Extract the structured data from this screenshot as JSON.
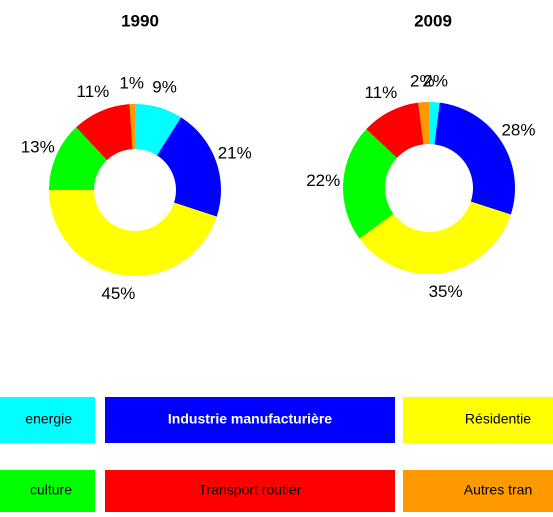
{
  "chart_data": [
    {
      "type": "pie",
      "title": "1990",
      "values": [
        9,
        21,
        45,
        13,
        11,
        1
      ],
      "value_labels": [
        "9%",
        "21%",
        "45%",
        "13%",
        "11%",
        "1%"
      ],
      "colors": [
        "#00ffff",
        "#0000ff",
        "#ffff00",
        "#00ff00",
        "#ff0000",
        "#ff9900"
      ]
    },
    {
      "type": "pie",
      "title": "2009",
      "values": [
        2,
        28,
        35,
        22,
        11,
        2
      ],
      "value_labels": [
        "2%",
        "28%",
        "35%",
        "22%",
        "11%",
        "2%"
      ],
      "colors": [
        "#00ffff",
        "#0000ff",
        "#ffff00",
        "#00ff00",
        "#ff0000",
        "#ff9900"
      ]
    }
  ],
  "legend": [
    {
      "label": "energie",
      "color": "#00ffff",
      "text_color": "#000000"
    },
    {
      "label": "Industrie manufacturière",
      "color": "#0000ff",
      "text_color": "#ffffff"
    },
    {
      "label": "Résidentie",
      "color": "#ffff00",
      "text_color": "#000000"
    },
    {
      "label": "culture",
      "color": "#00ff00",
      "text_color": "#000000"
    },
    {
      "label": "Transport routier",
      "color": "#ff0000",
      "text_color": "#000000"
    },
    {
      "label": "Autres tran",
      "color": "#ff9900",
      "text_color": "#000000"
    }
  ]
}
